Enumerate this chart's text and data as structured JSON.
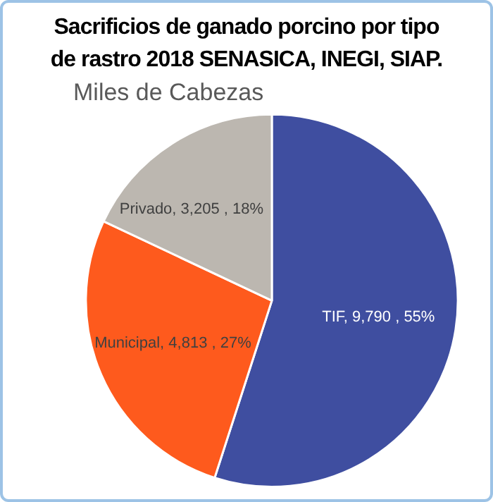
{
  "chart_data": {
    "type": "pie",
    "title": "Sacrificios de ganado porcino por tipo de rastro 2018 SENASICA, INEGI, SIAP.",
    "subtitle": "Miles de Cabezas",
    "categories": [
      "TIF",
      "Municipal",
      "Privado"
    ],
    "values": [
      9790,
      4813,
      3205
    ],
    "value_labels": [
      "9,790 , 55%",
      "4,813 , 27%",
      "3,205 , 18%"
    ],
    "colors": [
      "#3f4ea0",
      "#fe5a1d",
      "#bcb7b0"
    ],
    "legend": false
  }
}
